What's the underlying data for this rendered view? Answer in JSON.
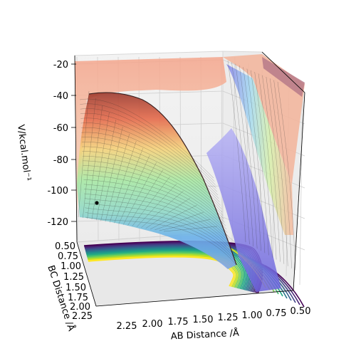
{
  "chart_data": {
    "type": "surface3d",
    "title": "",
    "xlabel": "AB Distance /Å",
    "ylabel": "BC Distance /Å",
    "zlabel": "V/kcal.mol⁻¹",
    "x_ticks": [
      "2.25",
      "2.00",
      "1.75",
      "1.50",
      "1.25",
      "1.00",
      "0.75",
      "0.50"
    ],
    "y_ticks": [
      "0.50",
      "0.75",
      "1.00",
      "1.25",
      "1.50",
      "1.75",
      "2.00",
      "2.25"
    ],
    "z_ticks": [
      "-20",
      "-40",
      "-60",
      "-80",
      "-100",
      "-120"
    ],
    "xlim": [
      0.5,
      2.25
    ],
    "ylim": [
      0.5,
      2.25
    ],
    "zlim": [
      -130,
      -20
    ],
    "surface_colormap": "jet",
    "contour_colormap": "viridis",
    "grid": true,
    "marker_point": {
      "ab": 2.3,
      "bc": 2.3,
      "energy": -109
    }
  }
}
